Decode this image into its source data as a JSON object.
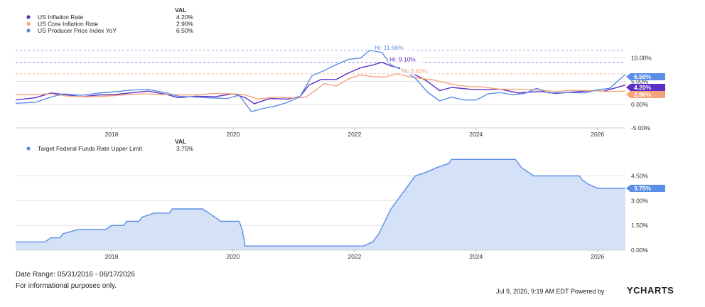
{
  "legend_top": {
    "header": "VAL",
    "items": [
      {
        "name": "US Inflation Rate",
        "value": "4.20%",
        "color": "#5b2ec4"
      },
      {
        "name": "US Core Inflation Rate",
        "value": "2.90%",
        "color": "#f5a47a"
      },
      {
        "name": "US Producer Price Index YoY",
        "value": "6.50%",
        "color": "#5b8ee6"
      }
    ]
  },
  "legend_bottom": {
    "header": "VAL",
    "items": [
      {
        "name": "Target Federal Funds Rate Upper Limit",
        "value": "3.75%",
        "color": "#5b8ee6"
      }
    ]
  },
  "footer": {
    "date_range": "Date Range: 05/31/2016 - 06/17/2026",
    "disclaimer": "For informational purposes only.",
    "timestamp": "Jul 9, 2026, 9:19 AM EDT Powered by",
    "brand": "YCHARTS"
  },
  "chart_data": [
    {
      "type": "line",
      "x_ticks": [
        "2018",
        "2020",
        "2022",
        "2024",
        "2026"
      ],
      "y_ticks": [
        "10.00%",
        "5.00%",
        "0.00%",
        "-5.00%"
      ],
      "ylim": [
        -5,
        13
      ],
      "x_range": [
        2016.42,
        2026.46
      ],
      "grid": true,
      "legend_position": "top-left",
      "annotations": [
        {
          "label": "Hi: 11.66%",
          "value": 11.66,
          "color": "#5b8ee6"
        },
        {
          "label": "Hi: 9.10%",
          "value": 9.1,
          "color": "#5b2ec4"
        },
        {
          "label": "Hi: 6.63%",
          "value": 6.63,
          "color": "#f5a47a"
        }
      ],
      "end_labels": [
        {
          "label": "6.50%",
          "value": 6.5,
          "color": "#5b8ee6"
        },
        {
          "label": "4.20%",
          "value": 4.2,
          "color": "#5b2ec4"
        },
        {
          "label": "2.90%",
          "value": 2.9,
          "color": "#f5a47a"
        }
      ],
      "series": [
        {
          "name": "US Inflation Rate",
          "color": "#5b2ec4",
          "points": [
            [
              2016.42,
              1.0
            ],
            [
              2016.75,
              1.5
            ],
            [
              2017.0,
              2.5
            ],
            [
              2017.2,
              2.2
            ],
            [
              2017.5,
              1.7
            ],
            [
              2017.8,
              2.1
            ],
            [
              2018.0,
              2.1
            ],
            [
              2018.3,
              2.5
            ],
            [
              2018.6,
              2.9
            ],
            [
              2018.9,
              2.2
            ],
            [
              2019.1,
              1.5
            ],
            [
              2019.4,
              1.8
            ],
            [
              2019.7,
              1.7
            ],
            [
              2020.0,
              2.3
            ],
            [
              2020.2,
              1.5
            ],
            [
              2020.35,
              0.2
            ],
            [
              2020.6,
              1.3
            ],
            [
              2020.9,
              1.2
            ],
            [
              2021.1,
              1.7
            ],
            [
              2021.25,
              4.2
            ],
            [
              2021.45,
              5.4
            ],
            [
              2021.7,
              5.4
            ],
            [
              2021.9,
              6.8
            ],
            [
              2022.1,
              7.9
            ],
            [
              2022.3,
              8.5
            ],
            [
              2022.45,
              9.1
            ],
            [
              2022.6,
              8.3
            ],
            [
              2022.8,
              7.7
            ],
            [
              2023.0,
              6.4
            ],
            [
              2023.2,
              5.0
            ],
            [
              2023.4,
              3.0
            ],
            [
              2023.6,
              3.7
            ],
            [
              2023.9,
              3.3
            ],
            [
              2024.1,
              3.2
            ],
            [
              2024.4,
              3.3
            ],
            [
              2024.7,
              2.5
            ],
            [
              2024.9,
              2.7
            ],
            [
              2025.1,
              2.8
            ],
            [
              2025.3,
              2.4
            ],
            [
              2025.6,
              2.7
            ],
            [
              2025.9,
              3.0
            ],
            [
              2026.1,
              2.9
            ],
            [
              2026.3,
              3.6
            ],
            [
              2026.46,
              4.2
            ]
          ]
        },
        {
          "name": "US Core Inflation Rate",
          "color": "#f5a47a",
          "points": [
            [
              2016.42,
              2.2
            ],
            [
              2016.75,
              2.2
            ],
            [
              2017.0,
              2.3
            ],
            [
              2017.3,
              1.8
            ],
            [
              2017.6,
              1.7
            ],
            [
              2017.9,
              1.8
            ],
            [
              2018.2,
              2.1
            ],
            [
              2018.5,
              2.3
            ],
            [
              2018.8,
              2.2
            ],
            [
              2019.1,
              2.1
            ],
            [
              2019.4,
              2.1
            ],
            [
              2019.7,
              2.4
            ],
            [
              2020.0,
              2.3
            ],
            [
              2020.2,
              2.1
            ],
            [
              2020.4,
              1.2
            ],
            [
              2020.7,
              1.6
            ],
            [
              2021.0,
              1.4
            ],
            [
              2021.2,
              1.6
            ],
            [
              2021.35,
              3.0
            ],
            [
              2021.5,
              4.5
            ],
            [
              2021.7,
              4.0
            ],
            [
              2021.9,
              5.5
            ],
            [
              2022.1,
              6.4
            ],
            [
              2022.3,
              6.0
            ],
            [
              2022.5,
              5.9
            ],
            [
              2022.7,
              6.63
            ],
            [
              2022.9,
              6.0
            ],
            [
              2023.1,
              5.6
            ],
            [
              2023.3,
              5.3
            ],
            [
              2023.5,
              4.7
            ],
            [
              2023.7,
              4.1
            ],
            [
              2023.9,
              3.9
            ],
            [
              2024.1,
              3.8
            ],
            [
              2024.4,
              3.3
            ],
            [
              2024.7,
              3.3
            ],
            [
              2024.9,
              3.2
            ],
            [
              2025.1,
              3.1
            ],
            [
              2025.3,
              2.8
            ],
            [
              2025.6,
              3.1
            ],
            [
              2025.9,
              3.0
            ],
            [
              2026.2,
              2.8
            ],
            [
              2026.46,
              2.9
            ]
          ]
        },
        {
          "name": "US Producer Price Index YoY",
          "color": "#5b8ee6",
          "points": [
            [
              2016.42,
              0.3
            ],
            [
              2016.75,
              0.5
            ],
            [
              2017.0,
              1.6
            ],
            [
              2017.2,
              2.3
            ],
            [
              2017.5,
              2.0
            ],
            [
              2017.8,
              2.5
            ],
            [
              2018.0,
              2.7
            ],
            [
              2018.3,
              3.1
            ],
            [
              2018.6,
              3.3
            ],
            [
              2018.9,
              2.5
            ],
            [
              2019.1,
              1.8
            ],
            [
              2019.4,
              1.6
            ],
            [
              2019.7,
              1.4
            ],
            [
              2019.9,
              1.3
            ],
            [
              2020.1,
              2.0
            ],
            [
              2020.3,
              -1.5
            ],
            [
              2020.5,
              -0.8
            ],
            [
              2020.7,
              -0.3
            ],
            [
              2020.9,
              0.5
            ],
            [
              2021.1,
              1.7
            ],
            [
              2021.3,
              6.2
            ],
            [
              2021.5,
              7.3
            ],
            [
              2021.7,
              8.6
            ],
            [
              2021.9,
              9.7
            ],
            [
              2022.1,
              10.0
            ],
            [
              2022.25,
              11.66
            ],
            [
              2022.45,
              11.2
            ],
            [
              2022.6,
              8.5
            ],
            [
              2022.8,
              7.4
            ],
            [
              2023.0,
              5.7
            ],
            [
              2023.2,
              2.7
            ],
            [
              2023.4,
              0.8
            ],
            [
              2023.6,
              1.6
            ],
            [
              2023.8,
              1.0
            ],
            [
              2024.0,
              1.0
            ],
            [
              2024.2,
              2.3
            ],
            [
              2024.4,
              2.6
            ],
            [
              2024.6,
              2.1
            ],
            [
              2024.8,
              2.4
            ],
            [
              2025.0,
              3.5
            ],
            [
              2025.2,
              2.5
            ],
            [
              2025.5,
              2.6
            ],
            [
              2025.8,
              2.5
            ],
            [
              2026.0,
              3.2
            ],
            [
              2026.2,
              3.5
            ],
            [
              2026.46,
              6.5
            ]
          ]
        }
      ]
    },
    {
      "type": "area",
      "x_ticks": [
        "2018",
        "2020",
        "2022",
        "2024",
        "2026"
      ],
      "y_ticks": [
        "4.50%",
        "3.00%",
        "1.50%",
        "0.00%"
      ],
      "ylim": [
        0,
        5.6
      ],
      "x_range": [
        2016.42,
        2026.46
      ],
      "grid": true,
      "legend_position": "top-left",
      "end_labels": [
        {
          "label": "3.75%",
          "value": 3.75,
          "color": "#5b8ee6"
        }
      ],
      "series": [
        {
          "name": "Target Federal Funds Rate Upper Limit",
          "color": "#5b8ee6",
          "points": [
            [
              2016.42,
              0.5
            ],
            [
              2016.9,
              0.5
            ],
            [
              2017.0,
              0.75
            ],
            [
              2017.15,
              0.75
            ],
            [
              2017.2,
              1.0
            ],
            [
              2017.45,
              1.25
            ],
            [
              2017.9,
              1.25
            ],
            [
              2018.0,
              1.5
            ],
            [
              2018.2,
              1.5
            ],
            [
              2018.25,
              1.75
            ],
            [
              2018.45,
              1.75
            ],
            [
              2018.5,
              2.0
            ],
            [
              2018.7,
              2.25
            ],
            [
              2018.95,
              2.25
            ],
            [
              2019.0,
              2.5
            ],
            [
              2019.5,
              2.5
            ],
            [
              2019.6,
              2.25
            ],
            [
              2019.7,
              2.0
            ],
            [
              2019.8,
              1.75
            ],
            [
              2020.1,
              1.75
            ],
            [
              2020.15,
              1.25
            ],
            [
              2020.2,
              0.25
            ],
            [
              2022.15,
              0.25
            ],
            [
              2022.3,
              0.5
            ],
            [
              2022.4,
              1.0
            ],
            [
              2022.5,
              1.75
            ],
            [
              2022.6,
              2.5
            ],
            [
              2022.75,
              3.25
            ],
            [
              2022.9,
              4.0
            ],
            [
              2023.0,
              4.5
            ],
            [
              2023.2,
              4.75
            ],
            [
              2023.35,
              5.0
            ],
            [
              2023.55,
              5.25
            ],
            [
              2023.6,
              5.5
            ],
            [
              2024.65,
              5.5
            ],
            [
              2024.75,
              5.0
            ],
            [
              2024.85,
              4.75
            ],
            [
              2024.95,
              4.5
            ],
            [
              2025.7,
              4.5
            ],
            [
              2025.75,
              4.25
            ],
            [
              2025.85,
              4.0
            ],
            [
              2026.0,
              3.75
            ],
            [
              2026.46,
              3.75
            ]
          ]
        }
      ]
    }
  ]
}
